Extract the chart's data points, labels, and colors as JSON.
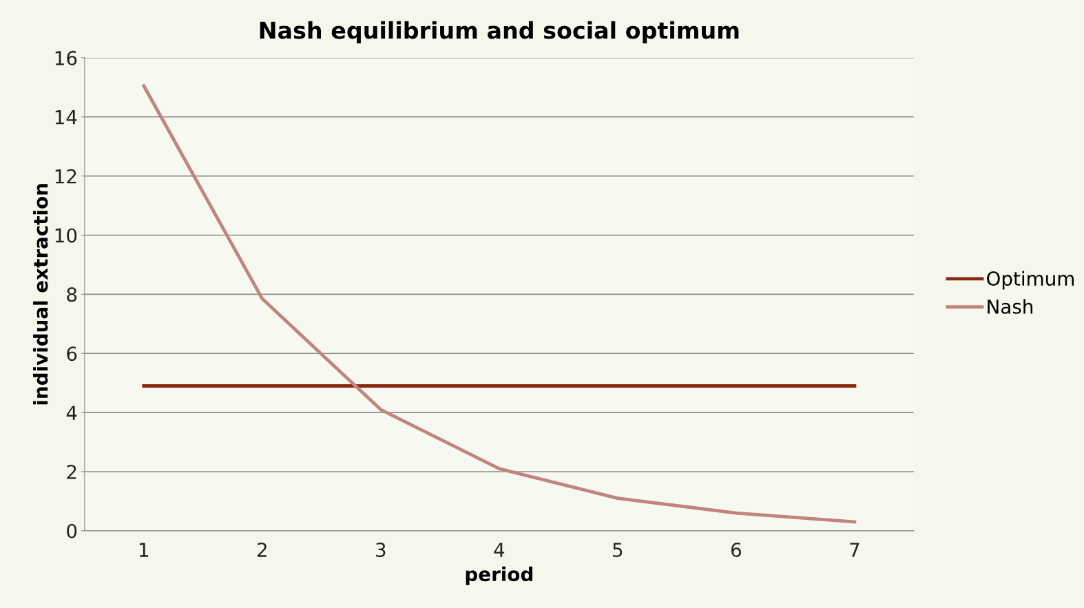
{
  "chart_data": {
    "type": "line",
    "title": "Nash equilibrium and social optimum",
    "xlabel": "period",
    "ylabel": "individual extraction",
    "categories": [
      "1",
      "2",
      "3",
      "4",
      "5",
      "6",
      "7"
    ],
    "series": [
      {
        "name": "Optimum",
        "color": "#8b2a12",
        "values": [
          4.9,
          4.9,
          4.9,
          4.9,
          4.9,
          4.9,
          4.9
        ]
      },
      {
        "name": "Nash",
        "color": "#c0857f",
        "values": [
          15.05,
          7.85,
          4.1,
          2.1,
          1.1,
          0.6,
          0.3
        ]
      }
    ],
    "ylim": [
      0,
      16
    ],
    "yticks": [
      0,
      2,
      4,
      6,
      8,
      10,
      12,
      14,
      16
    ],
    "grid": "y",
    "legend": "right",
    "marker": "none",
    "line_style": "solid"
  }
}
